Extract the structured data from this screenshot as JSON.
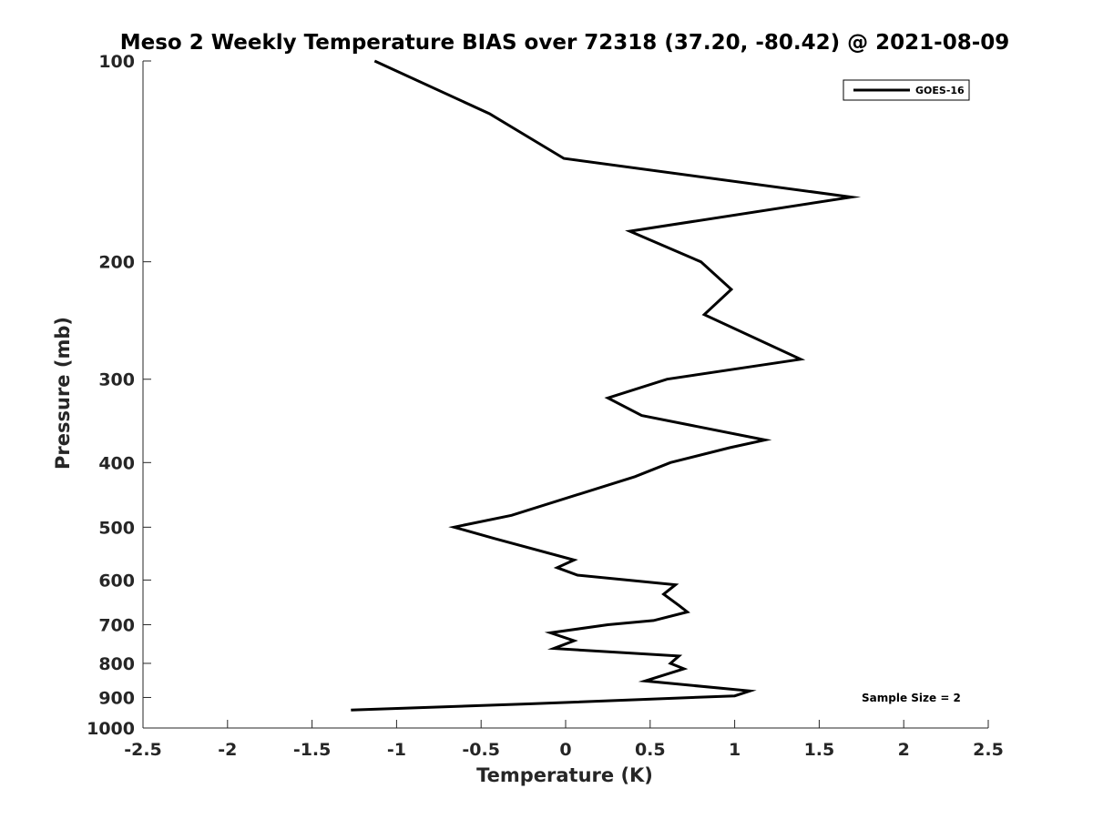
{
  "chart_data": {
    "type": "line",
    "title": "Meso 2 Weekly Temperature BIAS over 72318 (37.20, -80.42) @ 2021-08-09",
    "xlabel": "Temperature (K)",
    "ylabel": "Pressure (mb)",
    "xlim": [
      -2.5,
      2.5
    ],
    "ylim": [
      100,
      1000
    ],
    "y_scale": "log",
    "y_reversed": true,
    "grid": false,
    "legend_position": "top-right",
    "x_ticks": [
      -2.5,
      -2,
      -1.5,
      -1,
      -0.5,
      0,
      0.5,
      1,
      1.5,
      2,
      2.5
    ],
    "x_tick_labels": [
      "-2.5",
      "-2",
      "-1.5",
      "-1",
      "-0.5",
      "0",
      "0.5",
      "1",
      "1.5",
      "2",
      "2.5"
    ],
    "y_ticks": [
      100,
      200,
      300,
      400,
      500,
      600,
      700,
      800,
      900,
      1000
    ],
    "y_tick_labels": [
      "100",
      "200",
      "300",
      "400",
      "500",
      "600",
      "700",
      "800",
      "900",
      "1000"
    ],
    "series": [
      {
        "name": "GOES-16",
        "color": "#000000",
        "points": [
          {
            "x": -1.13,
            "y": 100
          },
          {
            "x": -0.45,
            "y": 120
          },
          {
            "x": -0.01,
            "y": 140
          },
          {
            "x": 1.69,
            "y": 160
          },
          {
            "x": 0.38,
            "y": 180
          },
          {
            "x": 0.8,
            "y": 200
          },
          {
            "x": 0.98,
            "y": 220
          },
          {
            "x": 0.82,
            "y": 240
          },
          {
            "x": 1.39,
            "y": 280
          },
          {
            "x": 0.6,
            "y": 300
          },
          {
            "x": 0.25,
            "y": 320
          },
          {
            "x": 0.45,
            "y": 340
          },
          {
            "x": 1.18,
            "y": 370
          },
          {
            "x": 0.97,
            "y": 380
          },
          {
            "x": 0.62,
            "y": 400
          },
          {
            "x": 0.41,
            "y": 420
          },
          {
            "x": -0.32,
            "y": 480
          },
          {
            "x": -0.66,
            "y": 500
          },
          {
            "x": -0.42,
            "y": 520
          },
          {
            "x": 0.05,
            "y": 560
          },
          {
            "x": -0.05,
            "y": 575
          },
          {
            "x": 0.07,
            "y": 590
          },
          {
            "x": 0.65,
            "y": 610
          },
          {
            "x": 0.58,
            "y": 630
          },
          {
            "x": 0.67,
            "y": 655
          },
          {
            "x": 0.72,
            "y": 670
          },
          {
            "x": 0.52,
            "y": 690
          },
          {
            "x": 0.25,
            "y": 700
          },
          {
            "x": -0.09,
            "y": 720
          },
          {
            "x": 0.05,
            "y": 740
          },
          {
            "x": -0.07,
            "y": 760
          },
          {
            "x": 0.67,
            "y": 780
          },
          {
            "x": 0.62,
            "y": 800
          },
          {
            "x": 0.7,
            "y": 815
          },
          {
            "x": 0.47,
            "y": 850
          },
          {
            "x": 1.09,
            "y": 880
          },
          {
            "x": 1.0,
            "y": 895
          },
          {
            "x": -0.22,
            "y": 920
          },
          {
            "x": -1.27,
            "y": 940
          }
        ]
      }
    ],
    "annotations": [
      {
        "text": "Sample Size = 2",
        "position": "bottom-right"
      }
    ]
  }
}
